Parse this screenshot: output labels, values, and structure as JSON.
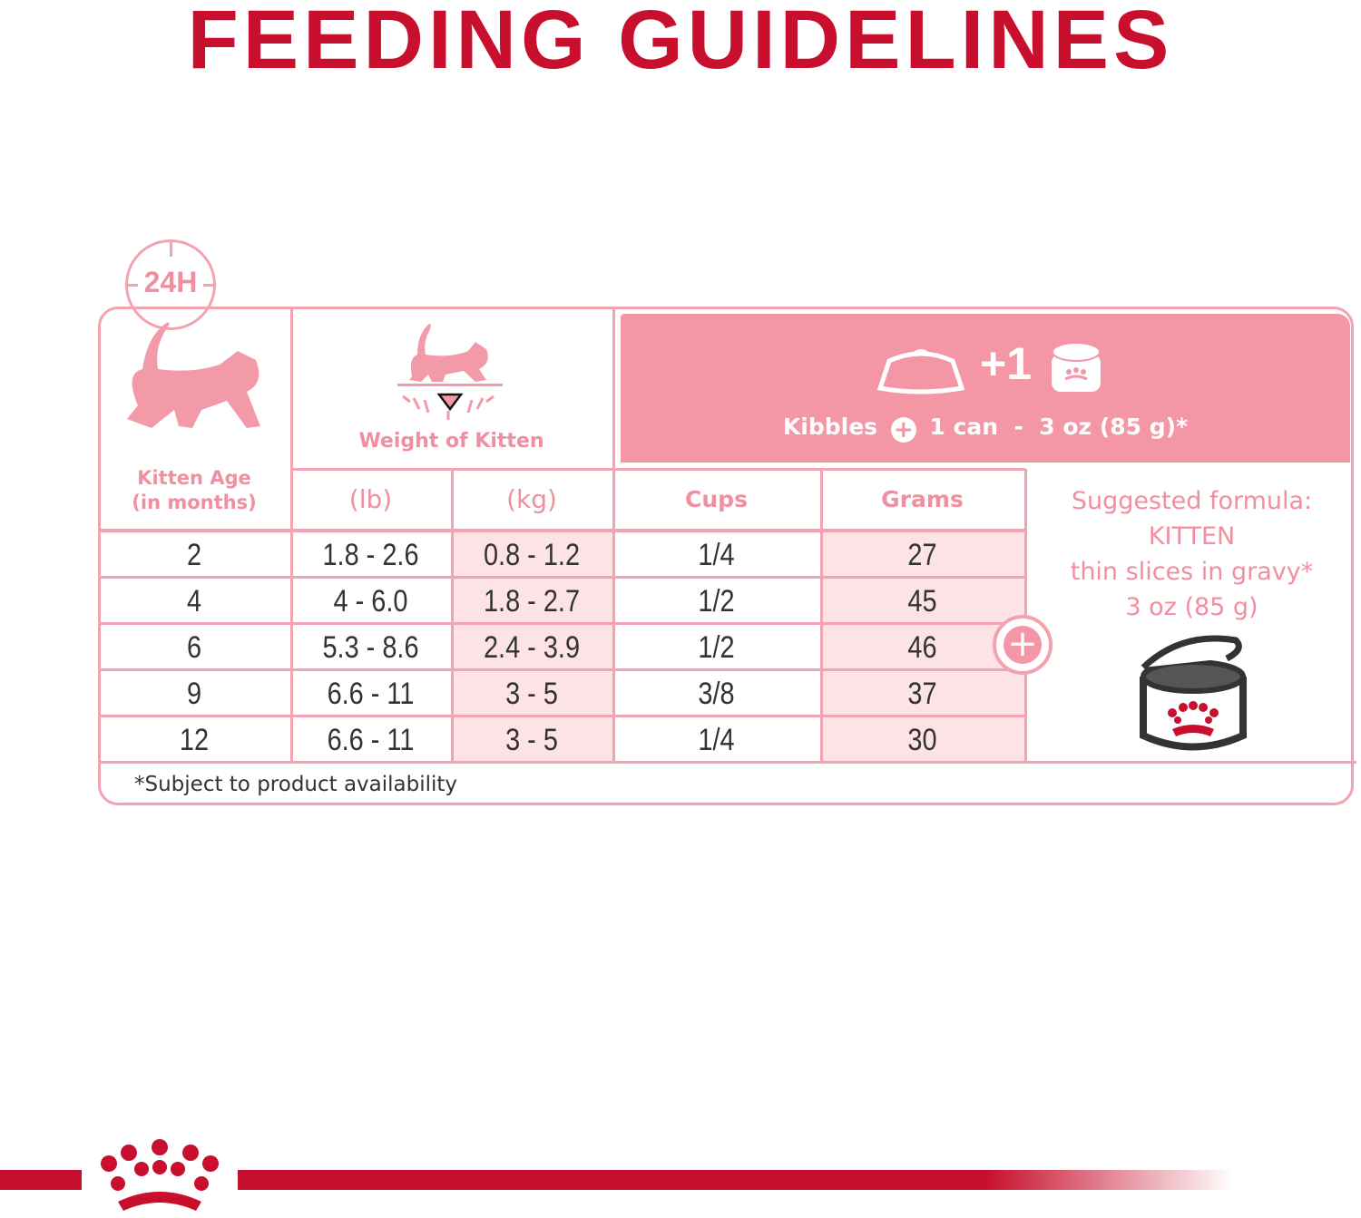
{
  "title": "FEEDING GUIDELINES",
  "badge": "24H",
  "headers": {
    "age": "Kitten Age\n(in months)",
    "weight": "Weight of Kitten",
    "lb": "(lb)",
    "kg": "(kg)",
    "plus_one": "+1",
    "kibbles": "Kibbles",
    "can": "1 can  -  3 oz (85 g)*",
    "cups": "Cups",
    "grams": "Grams"
  },
  "rows": [
    {
      "age": "2",
      "lb": "1.8 - 2.6",
      "kg": "0.8 - 1.2",
      "cups": "1/4",
      "grams": "27"
    },
    {
      "age": "4",
      "lb": "4 - 6.0",
      "kg": "1.8 - 2.7",
      "cups": "1/2",
      "grams": "45"
    },
    {
      "age": "6",
      "lb": "5.3 - 8.6",
      "kg": "2.4 - 3.9",
      "cups": "1/2",
      "grams": "46"
    },
    {
      "age": "9",
      "lb": "6.6 - 11",
      "kg": "3 - 5",
      "cups": "3/8",
      "grams": "37"
    },
    {
      "age": "12",
      "lb": "6.6 - 11",
      "kg": "3 - 5",
      "cups": "1/4",
      "grams": "30"
    }
  ],
  "suggested": {
    "label": "Suggested formula:",
    "product": "KITTEN",
    "variant": "thin slices in gravy*",
    "size": "3 oz (85 g)"
  },
  "footnote": "*Subject to product availability",
  "colors": {
    "title_red": "#c8102e",
    "pink": "#f397a6",
    "light_pink": "#fde3e6"
  }
}
